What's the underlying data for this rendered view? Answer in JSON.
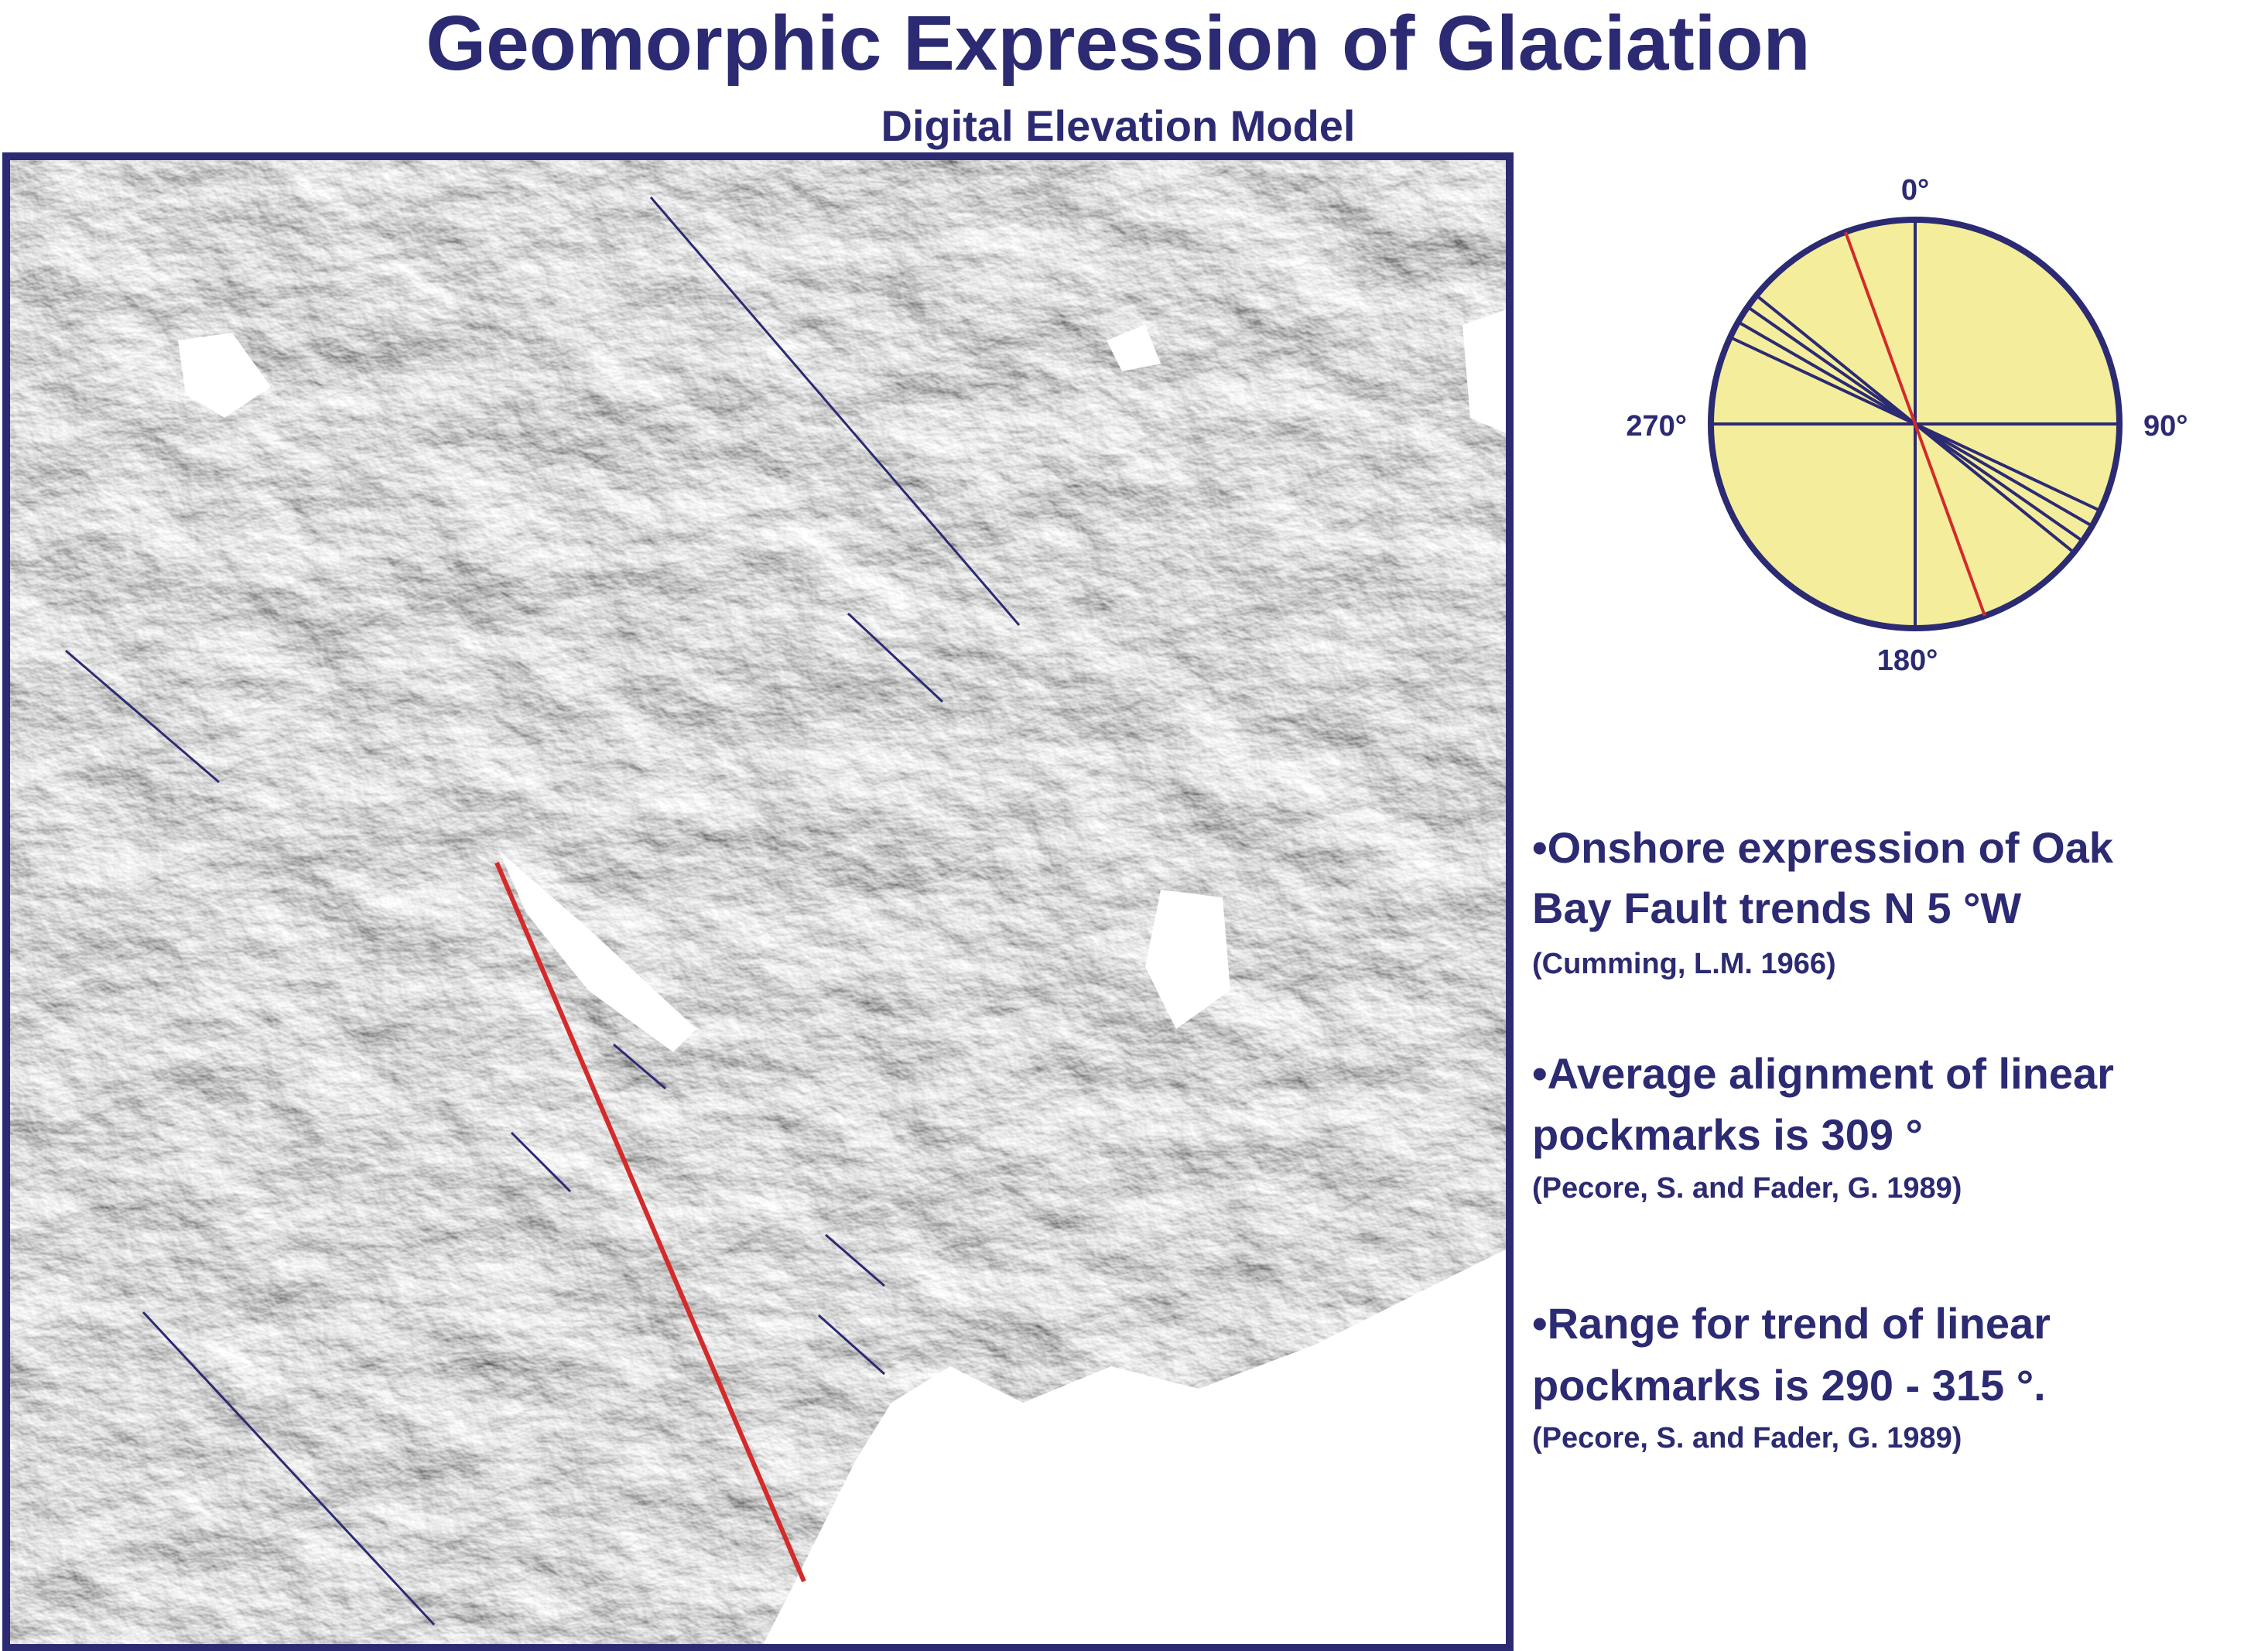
{
  "header": {
    "title": "Geomorphic Expression of Glaciation",
    "subtitle": "Digital Elevation Model"
  },
  "rose": {
    "labels": {
      "north": "0°",
      "east": "90°",
      "south": "180°",
      "west": "270°"
    }
  },
  "notes": [
    {
      "lines": [
        "•Onshore expression of Oak",
        "Bay Fault trends N 5 °W"
      ],
      "source": "(Cumming, L.M. 1966)"
    },
    {
      "lines": [
        "•Average alignment of linear",
        "pockmarks is 309 °"
      ],
      "source": "(Pecore, S. and Fader, G. 1989)"
    },
    {
      "lines": [
        "•Range for trend of linear",
        "pockmarks is 290  - 315 °."
      ],
      "source": "(Pecore, S. and Fader, G. 1989)"
    }
  ]
}
